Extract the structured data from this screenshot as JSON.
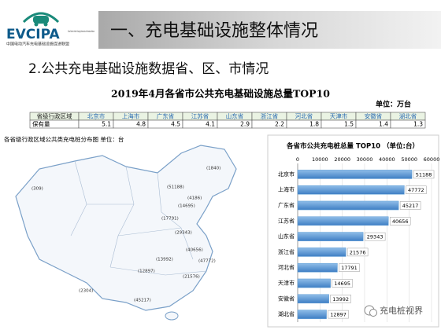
{
  "header": {
    "logo": "EVCIPA",
    "logo_sub": "中国电动汽车充电基础设施促进联盟",
    "logo_en": "China Electric Vehicle Charging Infrastructure Promotion Alliance",
    "title": "一、充电基础设施整体情况",
    "subtitle": "2.公共充电基础设施数据省、区、市情况"
  },
  "table": {
    "title": "2019年4月各省市公共充电基础设施总量TOP10",
    "unit": "单位：万台",
    "header": [
      "省级行政区域",
      "北京市",
      "上海市",
      "广东省",
      "江苏省",
      "山东省",
      "浙江省",
      "河北省",
      "天津市",
      "安徽省",
      "湖北省"
    ],
    "rows": [
      [
        "保有量",
        5.1,
        4.8,
        4.5,
        4.1,
        2.9,
        2.2,
        1.8,
        1.5,
        1.4,
        1.3
      ]
    ]
  },
  "map": {
    "title": "各省级行政区域公共类充电桩分布图  单位：台",
    "labels": [
      "(1840)",
      "(309)",
      "(4186)",
      "(51188)",
      "(14695)",
      "(17791)",
      "(29343)",
      "(40656)",
      "(47772)",
      "(21576)",
      "(13992)",
      "(12897)",
      "(45217)",
      "(2304)"
    ]
  },
  "chart_data": {
    "type": "bar",
    "orientation": "horizontal",
    "title": "各省市公共充电桩总量 TOP10 （单位:台）",
    "categories": [
      "北京市",
      "上海市",
      "广东省",
      "江苏省",
      "山东省",
      "浙江省",
      "河北省",
      "天津市",
      "安徽省",
      "湖北省"
    ],
    "values": [
      51188,
      47772,
      45217,
      40656,
      29343,
      21576,
      17791,
      14695,
      13992,
      12897
    ],
    "color": "#5b9bd5",
    "xlim": [
      0,
      60000
    ],
    "xticks": [
      0,
      10000,
      20000,
      30000,
      40000,
      50000,
      60000
    ],
    "grid": true
  },
  "watermark": "充电桩视界"
}
